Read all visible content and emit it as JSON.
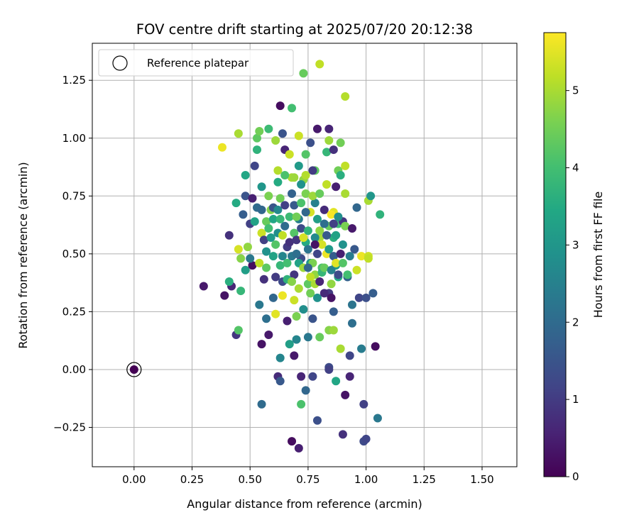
{
  "chart_data": {
    "type": "scatter",
    "title": "FOV centre drift starting at 2025/07/20 20:12:38",
    "xlabel": "Angular distance from reference (arcmin)",
    "ylabel": "Rotation from reference (arcmin)",
    "xlim": [
      -0.18,
      1.65
    ],
    "ylim": [
      -0.42,
      1.41
    ],
    "xticks": [
      0.0,
      0.25,
      0.5,
      0.75,
      1.0,
      1.25,
      1.5
    ],
    "xtick_labels": [
      "0.00",
      "0.25",
      "0.50",
      "0.75",
      "1.00",
      "1.25",
      "1.50"
    ],
    "yticks": [
      -0.25,
      0.0,
      0.25,
      0.5,
      0.75,
      1.0,
      1.25
    ],
    "ytick_labels": [
      "−0.25",
      "0.00",
      "0.25",
      "0.50",
      "0.75",
      "1.00",
      "1.25"
    ],
    "grid": true,
    "legend": {
      "position": "top-left",
      "entries": [
        "Reference platepar"
      ]
    },
    "reference_point": {
      "x": 0.0,
      "y": 0.0,
      "hours": 0.0
    },
    "colorbar": {
      "label": "Hours from first FF file",
      "colormap": "viridis",
      "range": [
        0,
        5.75
      ],
      "ticks": [
        0,
        1,
        2,
        3,
        4,
        5
      ],
      "tick_labels": [
        "0",
        "1",
        "2",
        "3",
        "4",
        "5"
      ]
    },
    "points": [
      {
        "x": 0.3,
        "y": 0.36,
        "h": 0.4
      },
      {
        "x": 0.39,
        "y": 0.32,
        "h": 0.3
      },
      {
        "x": 0.42,
        "y": 0.36,
        "h": 0.6
      },
      {
        "x": 0.41,
        "y": 0.58,
        "h": 0.8
      },
      {
        "x": 0.38,
        "y": 0.96,
        "h": 5.6
      },
      {
        "x": 0.41,
        "y": 0.38,
        "h": 3.6
      },
      {
        "x": 0.44,
        "y": 0.15,
        "h": 0.9
      },
      {
        "x": 0.45,
        "y": 0.17,
        "h": 4.2
      },
      {
        "x": 0.46,
        "y": 0.34,
        "h": 3.8
      },
      {
        "x": 0.45,
        "y": 0.52,
        "h": 5.4
      },
      {
        "x": 0.46,
        "y": 0.48,
        "h": 4.7
      },
      {
        "x": 0.44,
        "y": 0.72,
        "h": 3.5
      },
      {
        "x": 0.45,
        "y": 1.02,
        "h": 5.0
      },
      {
        "x": 0.48,
        "y": 0.84,
        "h": 3.4
      },
      {
        "x": 0.49,
        "y": 0.53,
        "h": 4.8
      },
      {
        "x": 0.48,
        "y": 0.43,
        "h": 3.2
      },
      {
        "x": 0.5,
        "y": 0.63,
        "h": 1.1
      },
      {
        "x": 0.51,
        "y": 0.45,
        "h": 0.2
      },
      {
        "x": 0.52,
        "y": 0.88,
        "h": 1.2
      },
      {
        "x": 0.53,
        "y": 0.95,
        "h": 3.7
      },
      {
        "x": 0.53,
        "y": 1.0,
        "h": 4.3
      },
      {
        "x": 0.54,
        "y": 1.03,
        "h": 4.5
      },
      {
        "x": 0.55,
        "y": 0.79,
        "h": 3.0
      },
      {
        "x": 0.55,
        "y": 0.59,
        "h": 5.3
      },
      {
        "x": 0.54,
        "y": 0.46,
        "h": 5.2
      },
      {
        "x": 0.54,
        "y": 0.28,
        "h": 2.3
      },
      {
        "x": 0.55,
        "y": 0.11,
        "h": 0.3
      },
      {
        "x": 0.55,
        "y": -0.15,
        "h": 2.0
      },
      {
        "x": 0.56,
        "y": 0.39,
        "h": 0.8
      },
      {
        "x": 0.57,
        "y": 0.22,
        "h": 2.1
      },
      {
        "x": 0.58,
        "y": 0.15,
        "h": 0.4
      },
      {
        "x": 0.58,
        "y": 1.04,
        "h": 3.9
      },
      {
        "x": 0.57,
        "y": 0.64,
        "h": 4.4
      },
      {
        "x": 0.58,
        "y": 0.75,
        "h": 4.6
      },
      {
        "x": 0.59,
        "y": 0.69,
        "h": 4.7
      },
      {
        "x": 0.6,
        "y": 0.49,
        "h": 3.3
      },
      {
        "x": 0.6,
        "y": 0.31,
        "h": 1.9
      },
      {
        "x": 0.61,
        "y": 0.99,
        "h": 4.9
      },
      {
        "x": 0.61,
        "y": 0.24,
        "h": 5.5
      },
      {
        "x": 0.62,
        "y": -0.03,
        "h": 0.7
      },
      {
        "x": 0.62,
        "y": 0.59,
        "h": 2.8
      },
      {
        "x": 0.63,
        "y": 1.14,
        "h": 0.2
      },
      {
        "x": 0.62,
        "y": 0.86,
        "h": 5.1
      },
      {
        "x": 0.63,
        "y": 0.74,
        "h": 4.5
      },
      {
        "x": 0.63,
        "y": 0.45,
        "h": 3.8
      },
      {
        "x": 0.64,
        "y": 0.32,
        "h": 5.6
      },
      {
        "x": 0.63,
        "y": 0.05,
        "h": 2.6
      },
      {
        "x": 0.63,
        "y": -0.05,
        "h": 1.6
      },
      {
        "x": 0.64,
        "y": 1.02,
        "h": 1.5
      },
      {
        "x": 0.65,
        "y": 0.95,
        "h": 0.6
      },
      {
        "x": 0.65,
        "y": 0.62,
        "h": 2.0
      },
      {
        "x": 0.66,
        "y": 0.53,
        "h": 1.0
      },
      {
        "x": 0.66,
        "y": 0.21,
        "h": 0.5
      },
      {
        "x": 0.67,
        "y": 0.11,
        "h": 3.2
      },
      {
        "x": 0.68,
        "y": 1.13,
        "h": 4.0
      },
      {
        "x": 0.68,
        "y": 0.83,
        "h": 5.0
      },
      {
        "x": 0.68,
        "y": 0.76,
        "h": 1.8
      },
      {
        "x": 0.69,
        "y": 0.59,
        "h": 4.2
      },
      {
        "x": 0.69,
        "y": 0.41,
        "h": 0.9
      },
      {
        "x": 0.69,
        "y": 0.3,
        "h": 5.3
      },
      {
        "x": 0.69,
        "y": 0.06,
        "h": 0.4
      },
      {
        "x": 0.68,
        "y": -0.31,
        "h": 0.2
      },
      {
        "x": 0.7,
        "y": 0.23,
        "h": 4.6
      },
      {
        "x": 0.7,
        "y": 0.13,
        "h": 2.6
      },
      {
        "x": 0.71,
        "y": 1.01,
        "h": 5.3
      },
      {
        "x": 0.71,
        "y": 0.88,
        "h": 3.1
      },
      {
        "x": 0.71,
        "y": 0.65,
        "h": 2.4
      },
      {
        "x": 0.72,
        "y": 0.48,
        "h": 1.3
      },
      {
        "x": 0.72,
        "y": -0.15,
        "h": 4.1
      },
      {
        "x": 0.71,
        "y": -0.34,
        "h": 0.5
      },
      {
        "x": 0.73,
        "y": 1.28,
        "h": 4.4
      },
      {
        "x": 0.73,
        "y": 0.82,
        "h": 4.8
      },
      {
        "x": 0.73,
        "y": 0.26,
        "h": 2.8
      },
      {
        "x": 0.72,
        "y": -0.03,
        "h": 0.6
      },
      {
        "x": 0.74,
        "y": 0.93,
        "h": 4.2
      },
      {
        "x": 0.74,
        "y": 0.76,
        "h": 4.6
      },
      {
        "x": 0.74,
        "y": 0.55,
        "h": 3.5
      },
      {
        "x": 0.75,
        "y": 0.37,
        "h": 4.3
      },
      {
        "x": 0.75,
        "y": 0.14,
        "h": 2.3
      },
      {
        "x": 0.74,
        "y": -0.09,
        "h": 1.9
      },
      {
        "x": 0.76,
        "y": 0.98,
        "h": 1.4
      },
      {
        "x": 0.76,
        "y": 0.68,
        "h": 5.4
      },
      {
        "x": 0.76,
        "y": 0.46,
        "h": 3.0
      },
      {
        "x": 0.77,
        "y": 0.22,
        "h": 1.5
      },
      {
        "x": 0.77,
        "y": -0.03,
        "h": 1.2
      },
      {
        "x": 0.78,
        "y": 0.86,
        "h": 4.3
      },
      {
        "x": 0.78,
        "y": 0.72,
        "h": 2.5
      },
      {
        "x": 0.78,
        "y": 0.41,
        "h": 4.8
      },
      {
        "x": 0.79,
        "y": 1.04,
        "h": 0.4
      },
      {
        "x": 0.79,
        "y": 0.31,
        "h": 2.9
      },
      {
        "x": 0.79,
        "y": -0.22,
        "h": 1.4
      },
      {
        "x": 0.8,
        "y": 1.32,
        "h": 5.2
      },
      {
        "x": 0.8,
        "y": 0.57,
        "h": 5.0
      },
      {
        "x": 0.8,
        "y": 0.14,
        "h": 4.4
      },
      {
        "x": 0.81,
        "y": 0.44,
        "h": 4.1
      },
      {
        "x": 0.82,
        "y": 0.69,
        "h": 0.7
      },
      {
        "x": 0.83,
        "y": 0.94,
        "h": 3.8
      },
      {
        "x": 0.83,
        "y": 0.8,
        "h": 5.2
      },
      {
        "x": 0.83,
        "y": 0.5,
        "h": 5.6
      },
      {
        "x": 0.84,
        "y": 1.04,
        "h": 0.6
      },
      {
        "x": 0.84,
        "y": 0.99,
        "h": 4.9
      },
      {
        "x": 0.84,
        "y": 0.62,
        "h": 4.4
      },
      {
        "x": 0.84,
        "y": 0.33,
        "h": 1.0
      },
      {
        "x": 0.84,
        "y": 0.17,
        "h": 4.7
      },
      {
        "x": 0.84,
        "y": 0.01,
        "h": 1.3
      },
      {
        "x": 0.84,
        "y": 0.0,
        "h": 1.1
      },
      {
        "x": 0.85,
        "y": 0.31,
        "h": 0.3
      },
      {
        "x": 0.85,
        "y": 0.37,
        "h": 4.8
      },
      {
        "x": 0.86,
        "y": 0.95,
        "h": 0.8
      },
      {
        "x": 0.86,
        "y": 0.68,
        "h": 5.5
      },
      {
        "x": 0.86,
        "y": 0.57,
        "h": 3.6
      },
      {
        "x": 0.86,
        "y": 0.25,
        "h": 1.7
      },
      {
        "x": 0.86,
        "y": 0.17,
        "h": 4.9
      },
      {
        "x": 0.87,
        "y": 0.79,
        "h": 0.5
      },
      {
        "x": 0.87,
        "y": 0.45,
        "h": 3.2
      },
      {
        "x": 0.87,
        "y": -0.05,
        "h": 3.4
      },
      {
        "x": 0.88,
        "y": 0.86,
        "h": 4.5
      },
      {
        "x": 0.88,
        "y": 0.63,
        "h": 3.9
      },
      {
        "x": 0.88,
        "y": 0.4,
        "h": 3.5
      },
      {
        "x": 0.89,
        "y": 0.98,
        "h": 4.5
      },
      {
        "x": 0.89,
        "y": 0.09,
        "h": 5.0
      },
      {
        "x": 0.9,
        "y": 0.64,
        "h": 0.9
      },
      {
        "x": 0.9,
        "y": 0.54,
        "h": 2.9
      },
      {
        "x": 0.9,
        "y": -0.28,
        "h": 0.8
      },
      {
        "x": 0.91,
        "y": 1.18,
        "h": 5.1
      },
      {
        "x": 0.91,
        "y": 0.88,
        "h": 5.2
      },
      {
        "x": 0.91,
        "y": 0.76,
        "h": 5.0
      },
      {
        "x": 0.91,
        "y": 0.62,
        "h": 4.6
      },
      {
        "x": 0.91,
        "y": -0.11,
        "h": 0.3
      },
      {
        "x": 0.92,
        "y": 0.4,
        "h": 1.8
      },
      {
        "x": 0.93,
        "y": 0.06,
        "h": 1.2
      },
      {
        "x": 0.93,
        "y": -0.03,
        "h": 0.6
      },
      {
        "x": 0.94,
        "y": 0.61,
        "h": 0.4
      },
      {
        "x": 0.94,
        "y": 0.28,
        "h": 2.2
      },
      {
        "x": 0.94,
        "y": 0.2,
        "h": 2.1
      },
      {
        "x": 0.95,
        "y": 0.52,
        "h": 1.6
      },
      {
        "x": 0.96,
        "y": 0.7,
        "h": 1.9
      },
      {
        "x": 0.96,
        "y": 0.43,
        "h": 5.3
      },
      {
        "x": 0.97,
        "y": 0.31,
        "h": 1.2
      },
      {
        "x": 0.98,
        "y": 0.09,
        "h": 2.4
      },
      {
        "x": 0.98,
        "y": 0.49,
        "h": 5.6
      },
      {
        "x": 0.99,
        "y": -0.15,
        "h": 1.1
      },
      {
        "x": 0.99,
        "y": -0.31,
        "h": 1.3
      },
      {
        "x": 1.0,
        "y": 0.31,
        "h": 1.4
      },
      {
        "x": 1.0,
        "y": -0.3,
        "h": 1.2
      },
      {
        "x": 1.01,
        "y": 0.49,
        "h": 5.3
      },
      {
        "x": 1.01,
        "y": 0.48,
        "h": 5.2
      },
      {
        "x": 1.01,
        "y": 0.73,
        "h": 5.0
      },
      {
        "x": 1.02,
        "y": 0.75,
        "h": 3.0
      },
      {
        "x": 1.03,
        "y": 0.33,
        "h": 1.7
      },
      {
        "x": 1.04,
        "y": 0.1,
        "h": 0.2
      },
      {
        "x": 1.05,
        "y": -0.21,
        "h": 2.3
      },
      {
        "x": 1.06,
        "y": 0.67,
        "h": 3.7
      },
      {
        "x": 0.47,
        "y": 0.67,
        "h": 1.7
      },
      {
        "x": 0.48,
        "y": 0.75,
        "h": 1.5
      },
      {
        "x": 0.5,
        "y": 0.48,
        "h": 2.3
      },
      {
        "x": 0.51,
        "y": 0.74,
        "h": 0.5
      },
      {
        "x": 0.52,
        "y": 0.64,
        "h": 3.3
      },
      {
        "x": 0.53,
        "y": 0.7,
        "h": 2.0
      },
      {
        "x": 0.55,
        "y": 0.69,
        "h": 1.9
      },
      {
        "x": 0.56,
        "y": 0.56,
        "h": 1.1
      },
      {
        "x": 0.57,
        "y": 0.51,
        "h": 2.9
      },
      {
        "x": 0.57,
        "y": 0.44,
        "h": 4.3
      },
      {
        "x": 0.58,
        "y": 0.61,
        "h": 4.0
      },
      {
        "x": 0.59,
        "y": 0.57,
        "h": 3.1
      },
      {
        "x": 0.6,
        "y": 0.65,
        "h": 3.4
      },
      {
        "x": 0.6,
        "y": 0.7,
        "h": 1.5
      },
      {
        "x": 0.61,
        "y": 0.54,
        "h": 4.2
      },
      {
        "x": 0.61,
        "y": 0.4,
        "h": 1.0
      },
      {
        "x": 0.62,
        "y": 0.81,
        "h": 3.5
      },
      {
        "x": 0.62,
        "y": 0.69,
        "h": 2.7
      },
      {
        "x": 0.63,
        "y": 0.65,
        "h": 3.8
      },
      {
        "x": 0.64,
        "y": 0.58,
        "h": 5.2
      },
      {
        "x": 0.64,
        "y": 0.49,
        "h": 2.6
      },
      {
        "x": 0.64,
        "y": 0.38,
        "h": 1.3
      },
      {
        "x": 0.65,
        "y": 0.84,
        "h": 4.1
      },
      {
        "x": 0.65,
        "y": 0.71,
        "h": 1.1
      },
      {
        "x": 0.66,
        "y": 0.46,
        "h": 4.0
      },
      {
        "x": 0.66,
        "y": 0.39,
        "h": 3.7
      },
      {
        "x": 0.67,
        "y": 0.93,
        "h": 5.3
      },
      {
        "x": 0.67,
        "y": 0.66,
        "h": 3.9
      },
      {
        "x": 0.67,
        "y": 0.55,
        "h": 0.8
      },
      {
        "x": 0.68,
        "y": 0.49,
        "h": 2.3
      },
      {
        "x": 0.68,
        "y": 0.38,
        "h": 4.7
      },
      {
        "x": 0.69,
        "y": 0.83,
        "h": 4.9
      },
      {
        "x": 0.69,
        "y": 0.71,
        "h": 1.6
      },
      {
        "x": 0.7,
        "y": 0.66,
        "h": 4.5
      },
      {
        "x": 0.7,
        "y": 0.56,
        "h": 0.9
      },
      {
        "x": 0.7,
        "y": 0.5,
        "h": 2.1
      },
      {
        "x": 0.71,
        "y": 0.46,
        "h": 3.3
      },
      {
        "x": 0.71,
        "y": 0.35,
        "h": 5.0
      },
      {
        "x": 0.72,
        "y": 0.8,
        "h": 2.9
      },
      {
        "x": 0.72,
        "y": 0.72,
        "h": 4.1
      },
      {
        "x": 0.72,
        "y": 0.61,
        "h": 1.3
      },
      {
        "x": 0.73,
        "y": 0.57,
        "h": 5.4
      },
      {
        "x": 0.73,
        "y": 0.44,
        "h": 4.9
      },
      {
        "x": 0.74,
        "y": 0.84,
        "h": 5.1
      },
      {
        "x": 0.74,
        "y": 0.68,
        "h": 1.9
      },
      {
        "x": 0.75,
        "y": 0.6,
        "h": 3.7
      },
      {
        "x": 0.75,
        "y": 0.52,
        "h": 2.2
      },
      {
        "x": 0.76,
        "y": 0.4,
        "h": 5.2
      },
      {
        "x": 0.76,
        "y": 0.33,
        "h": 4.5
      },
      {
        "x": 0.77,
        "y": 0.86,
        "h": 1.0
      },
      {
        "x": 0.77,
        "y": 0.75,
        "h": 4.9
      },
      {
        "x": 0.77,
        "y": 0.46,
        "h": 4.6
      },
      {
        "x": 0.78,
        "y": 0.57,
        "h": 2.7
      },
      {
        "x": 0.78,
        "y": 0.37,
        "h": 5.0
      },
      {
        "x": 0.79,
        "y": 0.5,
        "h": 1.2
      },
      {
        "x": 0.8,
        "y": 0.6,
        "h": 4.8
      },
      {
        "x": 0.8,
        "y": 0.38,
        "h": 0.6
      },
      {
        "x": 0.81,
        "y": 0.54,
        "h": 5.4
      },
      {
        "x": 0.81,
        "y": 0.42,
        "h": 3.8
      },
      {
        "x": 0.82,
        "y": 0.63,
        "h": 2.1
      },
      {
        "x": 0.82,
        "y": 0.44,
        "h": 4.4
      },
      {
        "x": 0.83,
        "y": 0.58,
        "h": 1.6
      },
      {
        "x": 0.84,
        "y": 0.52,
        "h": 3.1
      },
      {
        "x": 0.85,
        "y": 0.67,
        "h": 5.7
      },
      {
        "x": 0.85,
        "y": 0.43,
        "h": 2.5
      },
      {
        "x": 0.86,
        "y": 0.49,
        "h": 1.7
      },
      {
        "x": 0.87,
        "y": 0.58,
        "h": 3.3
      },
      {
        "x": 0.87,
        "y": 0.46,
        "h": 5.5
      },
      {
        "x": 0.88,
        "y": 0.66,
        "h": 2.8
      },
      {
        "x": 0.89,
        "y": 0.5,
        "h": 0.5
      },
      {
        "x": 0.89,
        "y": 0.84,
        "h": 3.6
      },
      {
        "x": 0.9,
        "y": 0.46,
        "h": 4.2
      },
      {
        "x": 0.92,
        "y": 0.41,
        "h": 4.0
      },
      {
        "x": 0.93,
        "y": 0.49,
        "h": 2.4
      },
      {
        "x": 0.88,
        "y": 0.41,
        "h": 1.3
      },
      {
        "x": 0.86,
        "y": 0.63,
        "h": 1.1
      },
      {
        "x": 0.82,
        "y": 0.33,
        "h": 0.7
      },
      {
        "x": 0.8,
        "y": 0.76,
        "h": 4.4
      },
      {
        "x": 0.79,
        "y": 0.65,
        "h": 3.2
      },
      {
        "x": 0.78,
        "y": 0.54,
        "h": 0.3
      },
      {
        "x": 0.75,
        "y": 0.44,
        "h": 1.9
      }
    ]
  }
}
